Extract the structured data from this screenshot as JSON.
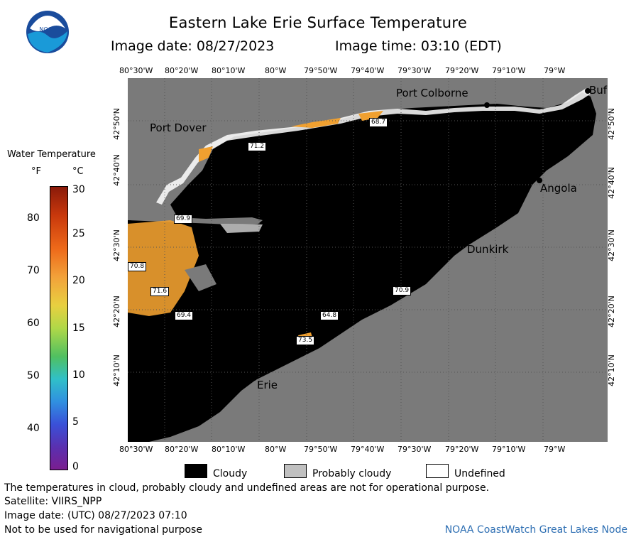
{
  "title": "Eastern Lake Erie Surface Temperature",
  "image_date": "Image date: 08/27/2023",
  "image_time": "Image time: 03:10 (EDT)",
  "logo_text": "NOAA",
  "legend": {
    "title": "Water Temperature",
    "unit_f": "°F",
    "unit_c": "°C",
    "f_ticks": [
      "80",
      "70",
      "60",
      "50",
      "40"
    ],
    "c_ticks": [
      "30",
      "25",
      "20",
      "15",
      "10",
      "5",
      "0"
    ]
  },
  "lon_labels": [
    "80°30'W",
    "80°20'W",
    "80°10'W",
    "80°W",
    "79°50'W",
    "79°40'W",
    "79°30'W",
    "79°20'W",
    "79°10'W",
    "79°W"
  ],
  "lat_labels_left": [
    "42°50'N",
    "42°40'N",
    "42°30'N",
    "42°20'N",
    "42°10'N"
  ],
  "lat_labels_right": [
    "42°50'N",
    "42°40'N",
    "42°30'N",
    "42°20'N",
    "42°10'N"
  ],
  "cities": {
    "port_colborne": "Port Colborne",
    "port_dover": "Port Dover",
    "angola": "Angola",
    "dunkirk": "Dunkirk",
    "erie": "Erie",
    "buffalo": "Buf"
  },
  "temp_labels": [
    "68.7",
    "71.2",
    "69.9",
    "70.8",
    "71.6",
    "69.4",
    "64.8",
    "73.5",
    "70.9"
  ],
  "key": {
    "cloudy": "Cloudy",
    "probably_cloudy": "Probably cloudy",
    "undefined": "Undefined"
  },
  "footer": {
    "note": "The temperatures in cloud, probably cloudy and undefined areas are not for operational purpose.",
    "satellite": "Satellite: VIIRS_NPP",
    "utc_date": "Image date: (UTC) 08/27/2023  07:10",
    "nav_warning": "Not to be used for navigational purpose",
    "node": "NOAA CoastWatch Great Lakes Node"
  },
  "colors": {
    "cloudy": "#000000",
    "probably_cloudy": "#c0c0c0",
    "land": "#7a7a7a",
    "warm_water": "#f0a030",
    "node_text": "#2e6fb3"
  }
}
